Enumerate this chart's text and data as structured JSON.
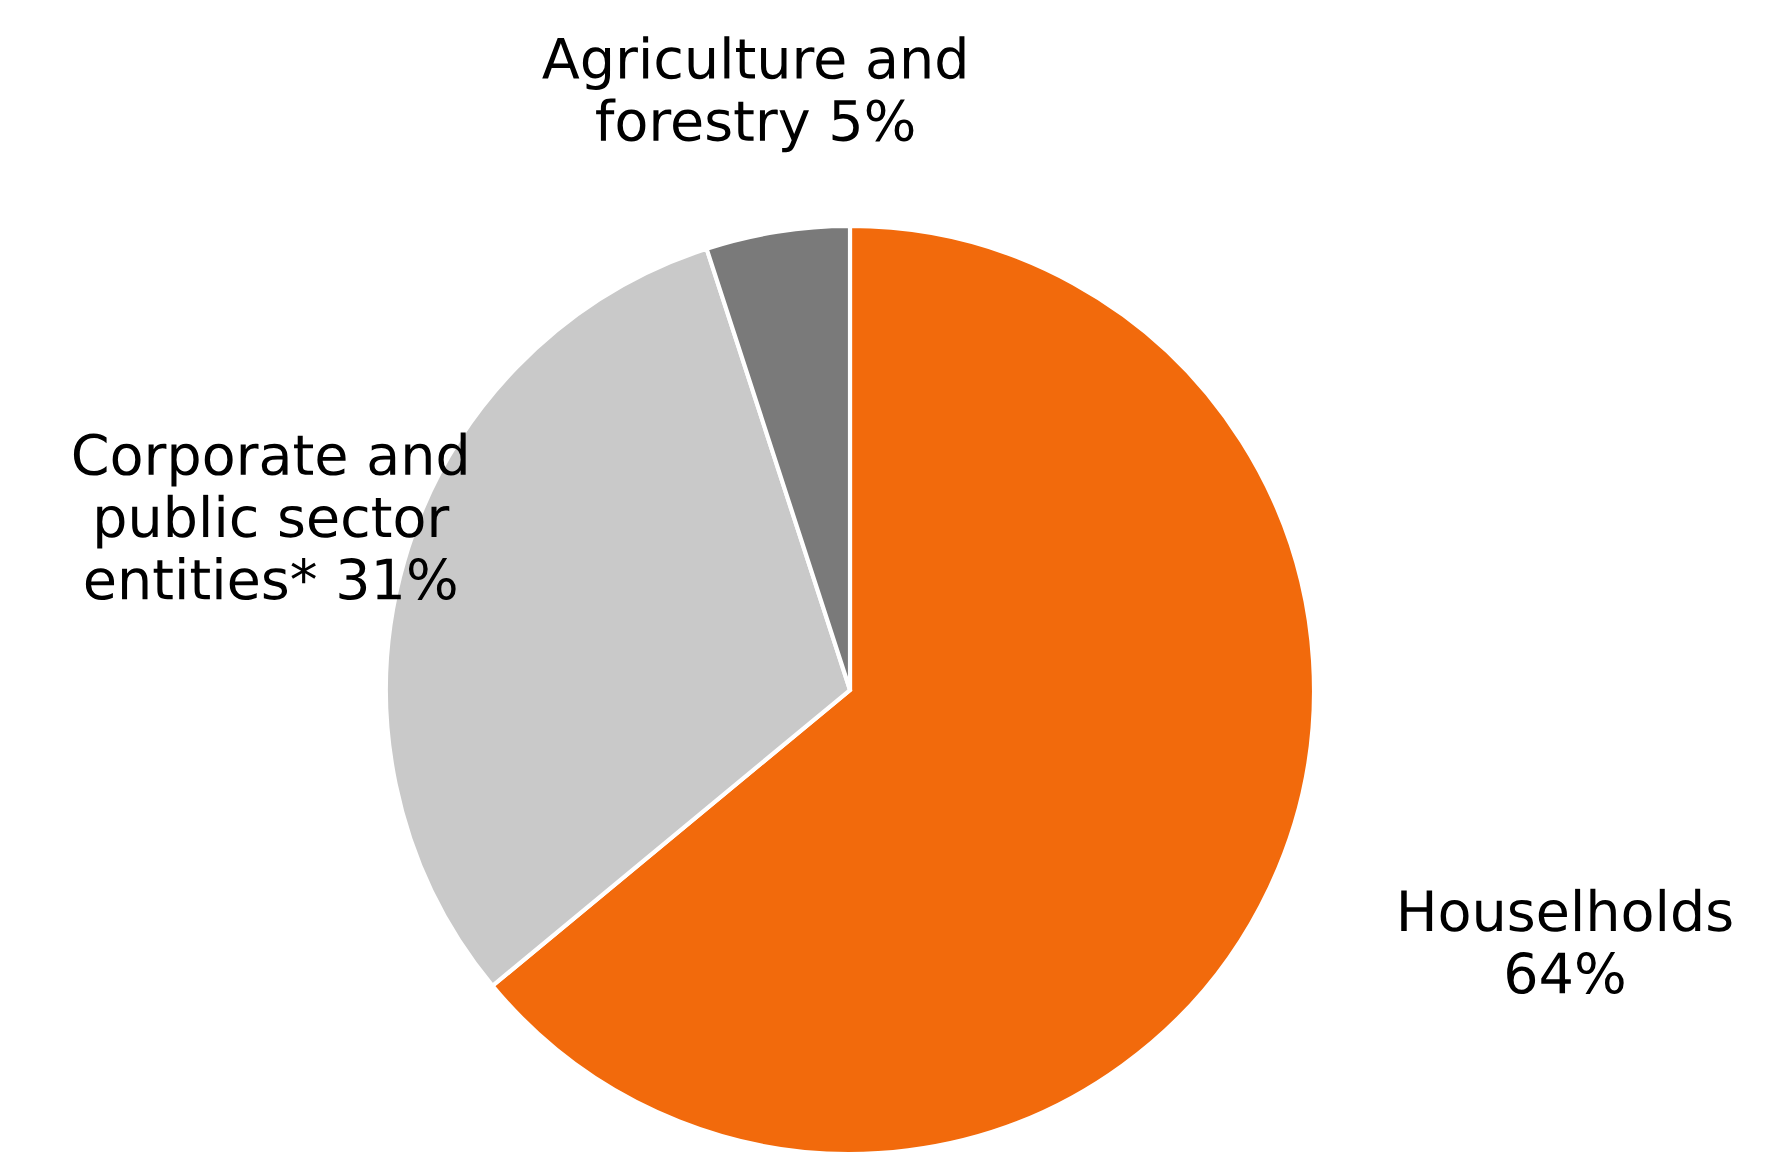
{
  "chart_data": {
    "type": "pie",
    "categories": [
      "Houselholds",
      "Corporate and\npublic sector\nentities*",
      "Agriculture and\nforestry"
    ],
    "values": [
      64,
      31,
      5
    ],
    "value_labels": [
      "64%",
      "31%",
      "5%"
    ],
    "colors": [
      "#f26a0c",
      "#c9c9c9",
      "#7a7a7a"
    ]
  }
}
